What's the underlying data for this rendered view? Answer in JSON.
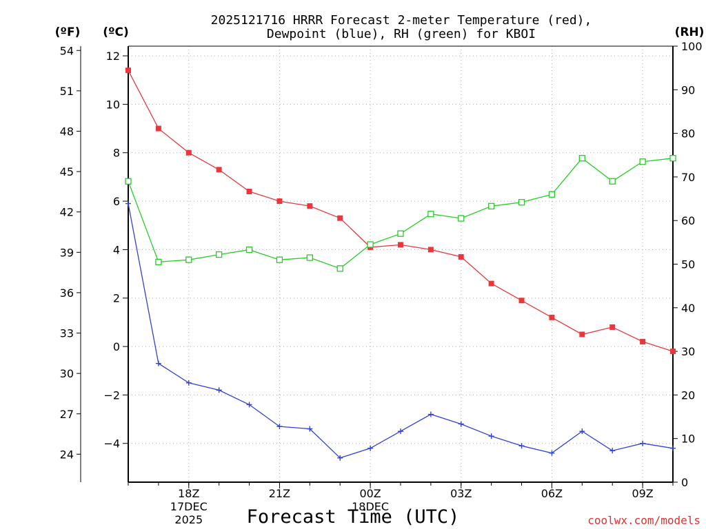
{
  "chart_data": {
    "type": "line",
    "title": "2025121716 HRRR Forecast 2-meter Temperature (red),",
    "subtitle": "Dewpoint (blue), RH (green) for KBOI",
    "xlabel": "Forecast Time (UTC)",
    "credit": "coolwx.com/models",
    "units": {
      "fahrenheit": "(ºF)",
      "celsius": "(ºC)",
      "rh": "(RH)"
    },
    "x_hours": [
      0,
      1,
      2,
      3,
      4,
      5,
      6,
      7,
      8,
      9,
      10,
      11,
      12,
      13,
      14,
      15,
      16,
      17,
      18
    ],
    "x_range": [
      0,
      18
    ],
    "celsius_axis": {
      "range": [
        -5.6,
        12.4
      ],
      "ticks": [
        12,
        10,
        8,
        6,
        4,
        2,
        0,
        -2,
        -4
      ],
      "tick_labels": [
        "12",
        "10",
        "8",
        "6",
        "4",
        "2",
        "0",
        "−2",
        "−4"
      ]
    },
    "fahrenheit_axis": {
      "ticks": [
        54,
        51,
        48,
        45,
        42,
        39,
        36,
        33,
        30,
        27,
        24
      ],
      "tick_labels": [
        "54",
        "51",
        "48",
        "45",
        "42",
        "39",
        "36",
        "33",
        "30",
        "27",
        "24"
      ]
    },
    "rh_axis": {
      "range": [
        0,
        100
      ],
      "ticks": [
        100,
        90,
        80,
        70,
        60,
        50,
        40,
        30,
        20,
        10,
        0
      ],
      "tick_labels": [
        "100",
        "90",
        "80",
        "70",
        "60",
        "50",
        "40",
        "30",
        "20",
        "10",
        "0"
      ]
    },
    "x_ticks": [
      {
        "hour": 2,
        "lines": [
          "18Z",
          "17DEC",
          "2025"
        ]
      },
      {
        "hour": 5,
        "lines": [
          "21Z"
        ]
      },
      {
        "hour": 8,
        "lines": [
          "00Z",
          "18DEC"
        ]
      },
      {
        "hour": 11,
        "lines": [
          "03Z"
        ]
      },
      {
        "hour": 14,
        "lines": [
          "06Z"
        ]
      },
      {
        "hour": 17,
        "lines": [
          "09Z"
        ]
      }
    ],
    "series": [
      {
        "name": "2-meter Temperature",
        "axis": "celsius",
        "color": "#e8383d",
        "marker": "filled-square",
        "values": [
          11.4,
          9.0,
          8.0,
          7.3,
          6.4,
          6.0,
          5.8,
          5.3,
          4.1,
          4.2,
          4.0,
          3.7,
          2.6,
          1.9,
          1.2,
          0.5,
          0.8,
          0.2,
          -0.2
        ]
      },
      {
        "name": "Dewpoint",
        "axis": "celsius",
        "color": "#3040d8",
        "marker": "plus",
        "values": [
          5.9,
          -0.7,
          -1.5,
          -1.8,
          -2.4,
          -3.3,
          -3.4,
          -4.6,
          -4.2,
          -3.5,
          -2.8,
          -3.2,
          -3.7,
          -4.1,
          -4.4,
          -3.5,
          -4.3,
          -4.0,
          -4.2
        ]
      },
      {
        "name": "RH",
        "axis": "rh",
        "color": "#22d022",
        "marker": "open-square",
        "values": [
          69,
          50.5,
          51,
          52.2,
          53.3,
          51,
          51.5,
          49,
          54.5,
          57,
          61.5,
          60.5,
          63.3,
          64.2,
          66,
          74.3,
          69,
          73.5,
          74.3
        ]
      }
    ]
  }
}
